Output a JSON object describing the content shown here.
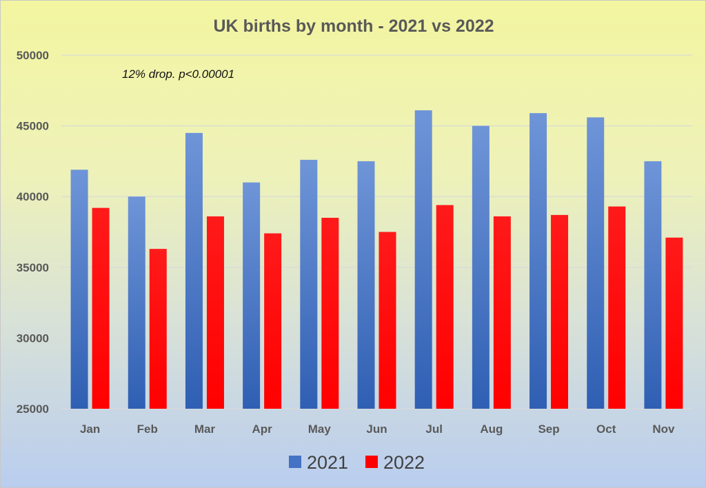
{
  "chart_data": {
    "type": "bar",
    "title": "UK births by month - 2021 vs 2022",
    "annotation": "12% drop. p<0.00001",
    "categories": [
      "Jan",
      "Feb",
      "Mar",
      "Apr",
      "May",
      "Jun",
      "Jul",
      "Aug",
      "Sep",
      "Oct",
      "Nov"
    ],
    "series": [
      {
        "name": "2021",
        "color": "#4472c4",
        "values": [
          41900,
          40000,
          44500,
          41000,
          42600,
          42500,
          46100,
          45000,
          45900,
          45600,
          42500
        ]
      },
      {
        "name": "2022",
        "color": "#ff0000",
        "values": [
          39200,
          36300,
          38600,
          37400,
          38500,
          37500,
          39400,
          38600,
          38700,
          39300,
          37100
        ]
      }
    ],
    "ylim": [
      25000,
      50000
    ],
    "yticks": [
      "25000",
      "30000",
      "35000",
      "40000",
      "45000",
      "50000"
    ],
    "grid": true,
    "legend_position": "bottom"
  }
}
